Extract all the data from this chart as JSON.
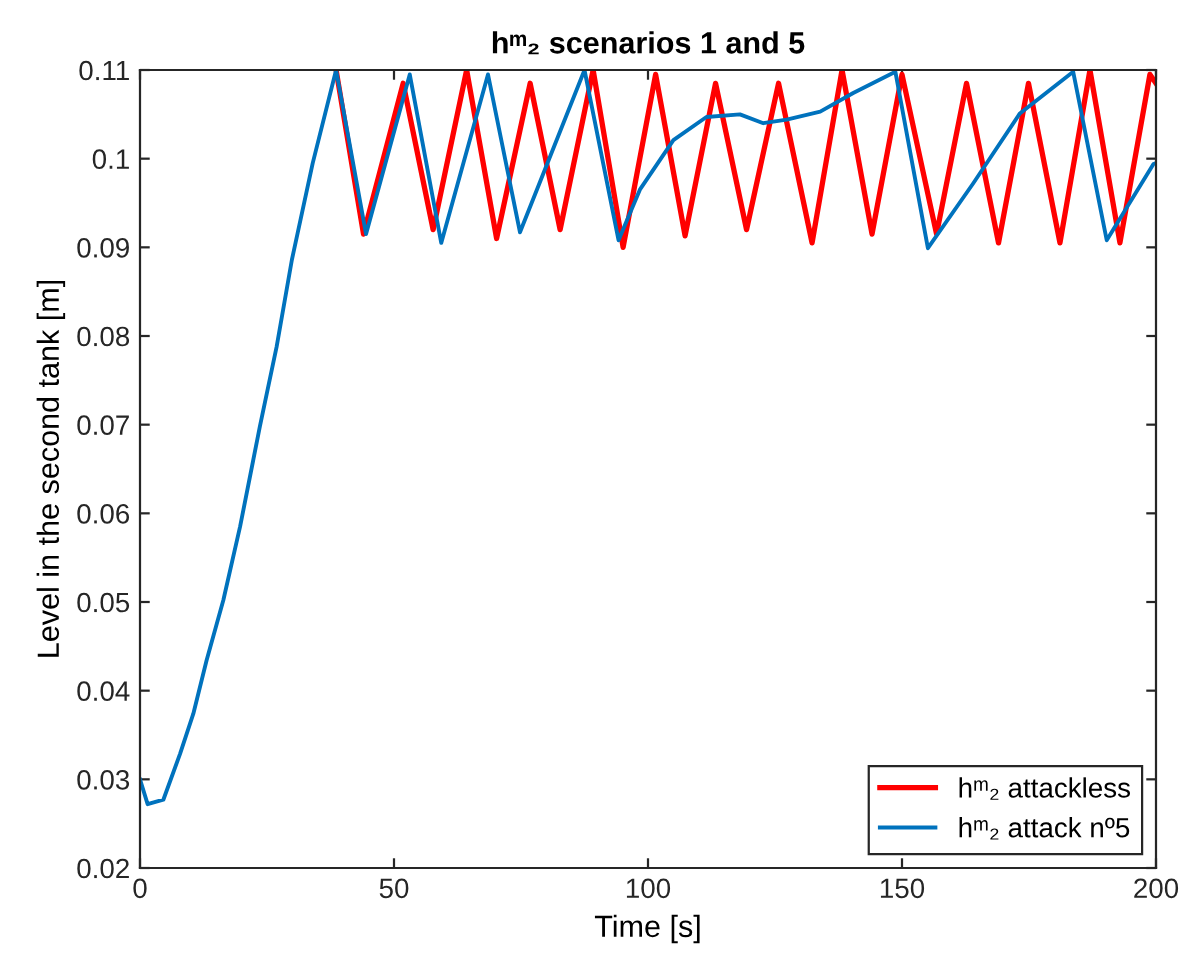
{
  "chart_data": {
    "type": "line",
    "title": "hᵐ₂ scenarios 1 and 5",
    "xlabel": "Time [s]",
    "ylabel": "Level in the second tank [m]",
    "xlim": [
      0,
      200
    ],
    "ylim": [
      0.02,
      0.11
    ],
    "xticks": [
      0,
      50,
      100,
      150,
      200
    ],
    "yticks": [
      0.02,
      0.03,
      0.04,
      0.05,
      0.06,
      0.07,
      0.08,
      0.09,
      0.1,
      0.11
    ],
    "grid": false,
    "legend": "bottom right",
    "line_style": "solid",
    "marker": "none",
    "series": [
      {
        "name": "hᵐ₂ attackless",
        "color": "#ff0000",
        "x": [
          38.6,
          44,
          51.8,
          57.7,
          64.3,
          70.2,
          76.8,
          82.7,
          89.2,
          95.1,
          101.5,
          107.3,
          113.3,
          119.4,
          125.7,
          132.3,
          138.2,
          144.1,
          150,
          156.8,
          162.7,
          169,
          174.9,
          181.1,
          187,
          192.9,
          198.8,
          200
        ],
        "values": [
          0.11,
          0.0915,
          0.1085,
          0.092,
          0.11,
          0.091,
          0.1085,
          0.092,
          0.11,
          0.09,
          0.1095,
          0.0913,
          0.1085,
          0.092,
          0.1085,
          0.0905,
          0.11,
          0.0915,
          0.1095,
          0.0915,
          0.1085,
          0.0905,
          0.1085,
          0.0905,
          0.11,
          0.0905,
          0.1095,
          0.1085
        ]
      },
      {
        "name": "hᵐ₂ attack nº5",
        "color": "#0072bd",
        "x": [
          0,
          1.5,
          4.6,
          7.9,
          10.5,
          13.1,
          16.4,
          19.7,
          23.6,
          26.9,
          29.9,
          34,
          38.6,
          44.5,
          53.1,
          59.3,
          68.5,
          74.8,
          87.5,
          94.2,
          98.4,
          105,
          111.5,
          118.1,
          122.7,
          127.3,
          133.9,
          140.4,
          148.7,
          155.1,
          164,
          173.2,
          183.7,
          190.3,
          199.5,
          200
        ],
        "values": [
          0.03,
          0.0272,
          0.0277,
          0.0329,
          0.0374,
          0.0434,
          0.0502,
          0.0585,
          0.0698,
          0.0788,
          0.0886,
          0.0995,
          0.11,
          0.0915,
          0.1095,
          0.0905,
          0.1095,
          0.0917,
          0.11,
          0.0908,
          0.0965,
          0.1021,
          0.1047,
          0.105,
          0.104,
          0.1044,
          0.1053,
          0.1074,
          0.1098,
          0.0899,
          0.0972,
          0.1051,
          0.1098,
          0.0908,
          0.0994,
          0.0995
        ]
      }
    ]
  }
}
